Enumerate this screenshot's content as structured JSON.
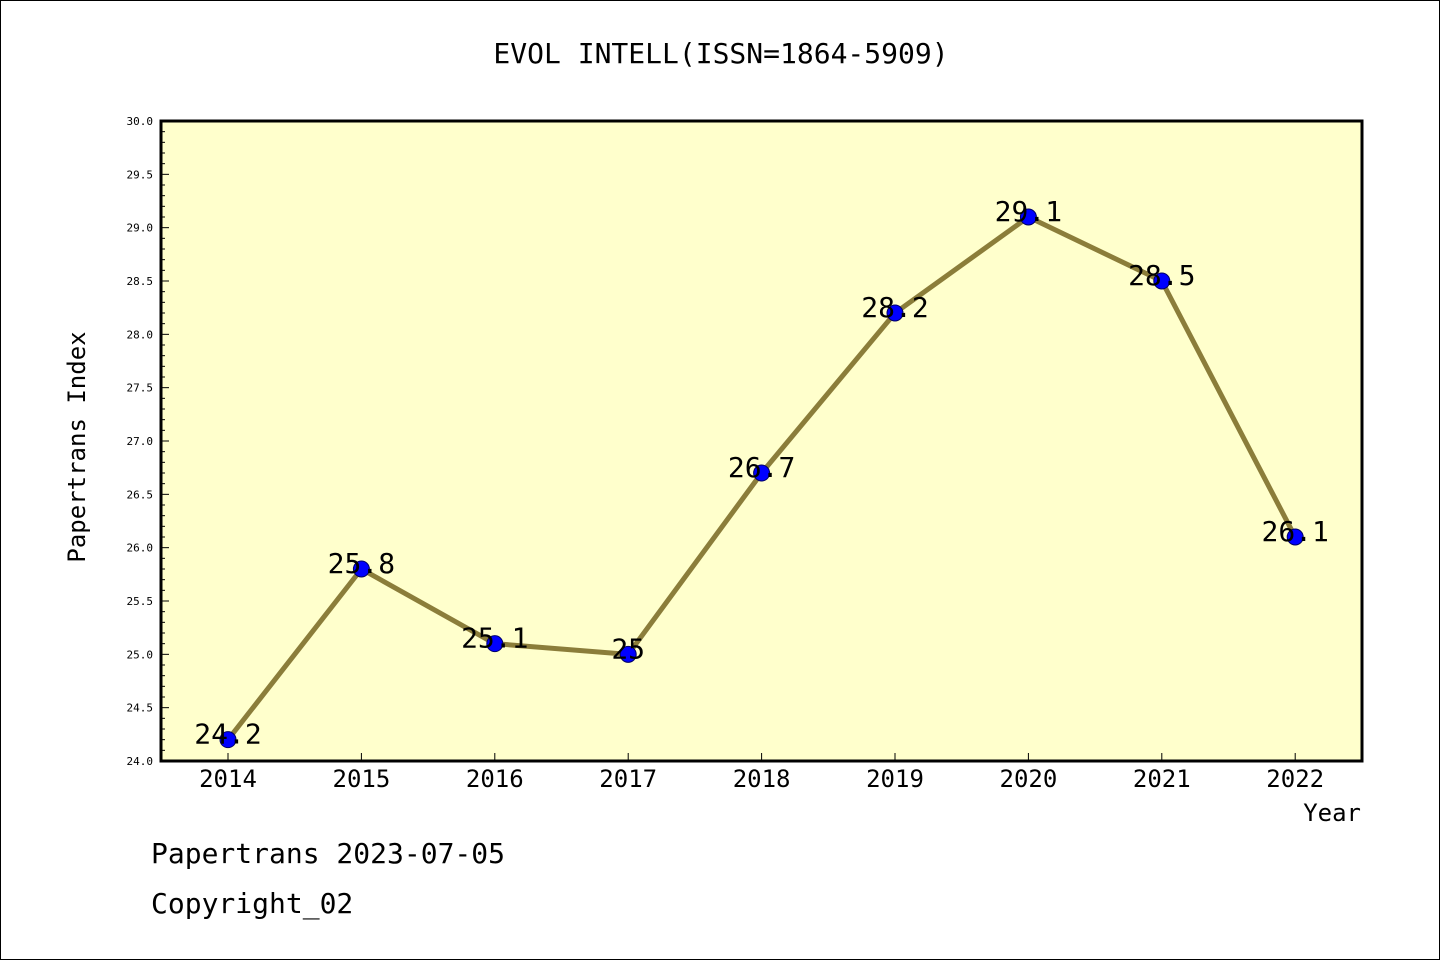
{
  "chart_title": "EVOL INTELL(ISSN=1864-5909)",
  "footer": {
    "line1": "Papertrans 2023-07-05",
    "line2": "Copyright_02"
  },
  "colors": {
    "plot_background": "#ffffcc",
    "line": "#8b7d3a",
    "marker": "#0000ff",
    "axis": "#000000"
  },
  "chart_data": {
    "type": "line",
    "title": "EVOL INTELL(ISSN=1864-5909)",
    "xlabel": "Year",
    "ylabel": "Papertrans Index",
    "categories": [
      "2014",
      "2015",
      "2016",
      "2017",
      "2018",
      "2019",
      "2020",
      "2021",
      "2022"
    ],
    "values": [
      24.2,
      25.8,
      25.1,
      25.0,
      26.7,
      28.2,
      29.1,
      28.5,
      26.1
    ],
    "data_labels": [
      "24.2",
      "25.8",
      "25.1",
      "25",
      "26.7",
      "28.2",
      "29.1",
      "28.5",
      "26.1"
    ],
    "ylim": [
      24.0,
      30.0
    ],
    "y_ticks": [
      "24.0",
      "24.5",
      "25.0",
      "25.5",
      "26.0",
      "26.5",
      "27.0",
      "27.5",
      "28.0",
      "28.5",
      "29.0",
      "29.5",
      "30.0"
    ],
    "grid": false,
    "legend": "none"
  }
}
